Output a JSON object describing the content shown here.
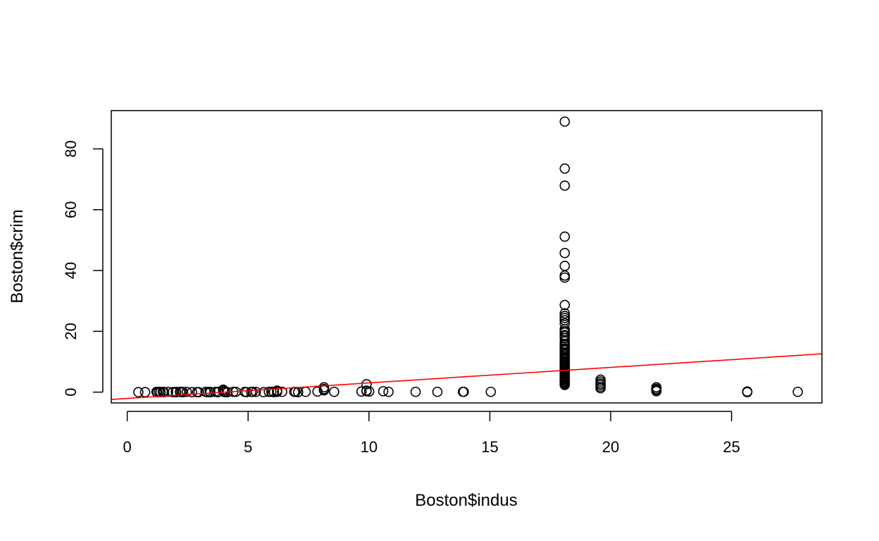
{
  "chart_data": {
    "type": "scatter",
    "title": "",
    "xlabel": "Boston$indus",
    "ylabel": "Boston$crim",
    "xlim": [
      -0.66,
      28.74
    ],
    "ylim": [
      -3.55,
      92.6
    ],
    "xticks": [
      0,
      5,
      10,
      15,
      20,
      25
    ],
    "yticks": [
      0,
      20,
      40,
      60,
      80
    ],
    "grid": false,
    "point_style": "open-circle",
    "colors": {
      "points": "#000000",
      "fit_line": "#ff0000",
      "frame": "#000000"
    },
    "points": [
      [
        0.46,
        0.0
      ],
      [
        0.74,
        0.0
      ],
      [
        1.21,
        0.1
      ],
      [
        1.25,
        0.0
      ],
      [
        1.32,
        0.1
      ],
      [
        1.38,
        0.0
      ],
      [
        1.47,
        0.1
      ],
      [
        1.52,
        0.0
      ],
      [
        1.69,
        0.1
      ],
      [
        1.89,
        0.0
      ],
      [
        2.01,
        0.1
      ],
      [
        2.02,
        0.0
      ],
      [
        2.18,
        0.1
      ],
      [
        2.24,
        0.1
      ],
      [
        2.25,
        0.0
      ],
      [
        2.31,
        0.0
      ],
      [
        2.46,
        0.1
      ],
      [
        2.68,
        0.0
      ],
      [
        2.89,
        0.0
      ],
      [
        2.95,
        0.0
      ],
      [
        3.24,
        0.1
      ],
      [
        3.33,
        0.0
      ],
      [
        3.41,
        0.1
      ],
      [
        3.44,
        0.0
      ],
      [
        3.64,
        0.1
      ],
      [
        3.75,
        0.0
      ],
      [
        3.78,
        0.1
      ],
      [
        3.97,
        0.5
      ],
      [
        3.97,
        0.8
      ],
      [
        4.0,
        0.1
      ],
      [
        4.05,
        0.0
      ],
      [
        4.15,
        0.0
      ],
      [
        4.39,
        0.1
      ],
      [
        4.49,
        0.1
      ],
      [
        4.86,
        0.1
      ],
      [
        4.93,
        0.0
      ],
      [
        5.13,
        0.1
      ],
      [
        5.19,
        0.1
      ],
      [
        5.32,
        0.1
      ],
      [
        5.64,
        0.0
      ],
      [
        5.86,
        0.1
      ],
      [
        5.96,
        0.1
      ],
      [
        6.06,
        0.1
      ],
      [
        6.07,
        0.0
      ],
      [
        6.2,
        0.1
      ],
      [
        6.2,
        0.5
      ],
      [
        6.41,
        0.1
      ],
      [
        6.91,
        0.1
      ],
      [
        6.96,
        0.1
      ],
      [
        7.07,
        0.0
      ],
      [
        7.38,
        0.1
      ],
      [
        7.87,
        0.2
      ],
      [
        8.14,
        0.6
      ],
      [
        8.14,
        1.0
      ],
      [
        8.14,
        1.6
      ],
      [
        8.14,
        0.9
      ],
      [
        8.56,
        0.1
      ],
      [
        9.69,
        0.2
      ],
      [
        9.9,
        0.5
      ],
      [
        9.9,
        2.6
      ],
      [
        9.9,
        0.3
      ],
      [
        10.01,
        0.2
      ],
      [
        10.59,
        0.3
      ],
      [
        10.81,
        0.1
      ],
      [
        11.93,
        0.1
      ],
      [
        12.83,
        0.1
      ],
      [
        13.89,
        0.1
      ],
      [
        13.92,
        0.1
      ],
      [
        15.04,
        0.1
      ],
      [
        18.1,
        88.98
      ],
      [
        18.1,
        73.53
      ],
      [
        18.1,
        67.92
      ],
      [
        18.1,
        51.14
      ],
      [
        18.1,
        45.75
      ],
      [
        18.1,
        41.53
      ],
      [
        18.1,
        38.35
      ],
      [
        18.1,
        37.66
      ],
      [
        18.1,
        28.66
      ],
      [
        18.1,
        25.9
      ],
      [
        18.1,
        25.05
      ],
      [
        18.1,
        24.39
      ],
      [
        18.1,
        23.65
      ],
      [
        18.1,
        22.6
      ],
      [
        18.1,
        20.72
      ],
      [
        18.1,
        20.08
      ],
      [
        18.1,
        19.61
      ],
      [
        18.1,
        18.81
      ],
      [
        18.1,
        18.5
      ],
      [
        18.1,
        17.87
      ],
      [
        18.1,
        16.8
      ],
      [
        18.1,
        15.88
      ],
      [
        18.1,
        15.58
      ],
      [
        18.1,
        15.02
      ],
      [
        18.1,
        14.43
      ],
      [
        18.1,
        14.05
      ],
      [
        18.1,
        13.68
      ],
      [
        18.1,
        13.08
      ],
      [
        18.1,
        12.5
      ],
      [
        18.1,
        12.05
      ],
      [
        18.1,
        11.58
      ],
      [
        18.1,
        11.1
      ],
      [
        18.1,
        10.67
      ],
      [
        18.1,
        10.23
      ],
      [
        18.1,
        9.92
      ],
      [
        18.1,
        9.59
      ],
      [
        18.1,
        9.19
      ],
      [
        18.1,
        8.79
      ],
      [
        18.1,
        8.49
      ],
      [
        18.1,
        8.15
      ],
      [
        18.1,
        7.84
      ],
      [
        18.1,
        7.4
      ],
      [
        18.1,
        7.05
      ],
      [
        18.1,
        6.65
      ],
      [
        18.1,
        6.29
      ],
      [
        18.1,
        5.87
      ],
      [
        18.1,
        5.58
      ],
      [
        18.1,
        5.2
      ],
      [
        18.1,
        4.87
      ],
      [
        18.1,
        4.52
      ],
      [
        18.1,
        4.22
      ],
      [
        18.1,
        3.84
      ],
      [
        18.1,
        3.47
      ],
      [
        18.1,
        3.16
      ],
      [
        18.1,
        2.92
      ],
      [
        18.1,
        2.63
      ],
      [
        18.1,
        2.38
      ],
      [
        19.58,
        4.1
      ],
      [
        19.58,
        3.5
      ],
      [
        19.58,
        2.9
      ],
      [
        19.58,
        2.4
      ],
      [
        19.58,
        1.8
      ],
      [
        19.58,
        1.3
      ],
      [
        21.89,
        1.6
      ],
      [
        21.89,
        1.1
      ],
      [
        21.89,
        0.7
      ],
      [
        21.89,
        0.3
      ],
      [
        25.65,
        0.2
      ],
      [
        25.65,
        0.0
      ],
      [
        27.74,
        0.1
      ]
    ],
    "fit_line": {
      "intercept": -2.0637,
      "slope": 0.5098
    }
  }
}
